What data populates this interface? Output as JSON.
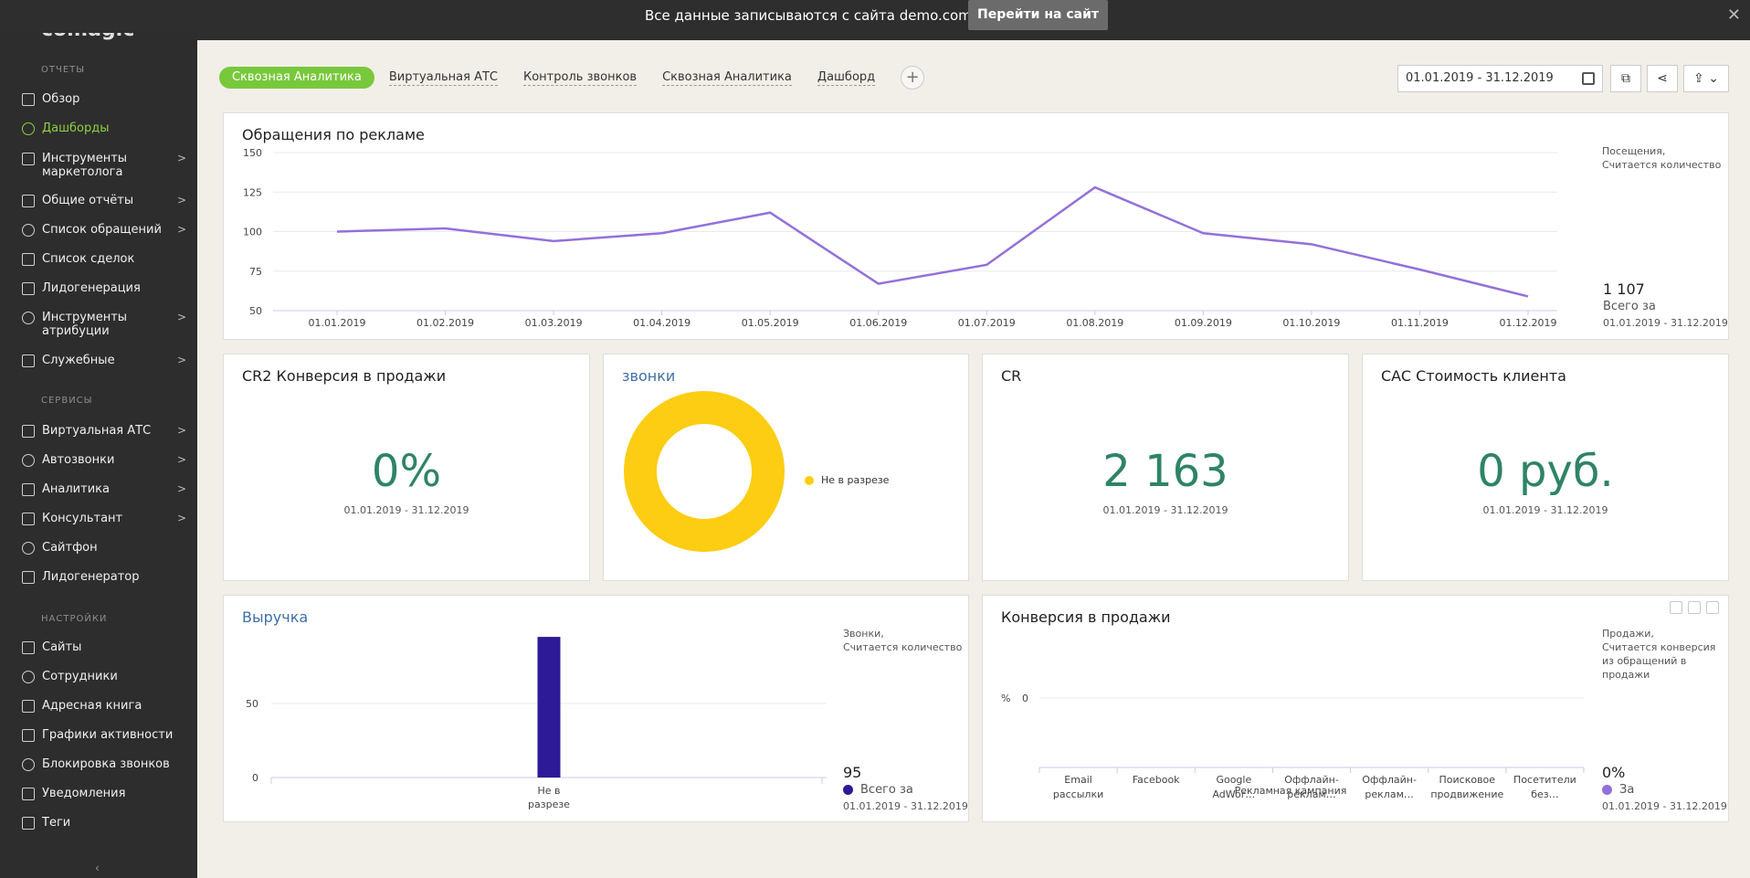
{
  "banner": {
    "text": "Все данные записываются с сайта demo.comagic.ru",
    "button": "Перейти на сайт",
    "close": "✕"
  },
  "sidebar": {
    "logo": "comagic",
    "sections": {
      "reports": "ОТЧЕТЫ",
      "services": "СЕРВИСЫ",
      "settings": "НАСТРОЙКИ"
    },
    "reports_items": [
      {
        "label": "Обзор",
        "arrow": ""
      },
      {
        "label": "Дашборды",
        "arrow": ""
      },
      {
        "label": "Инструменты маркетолога",
        "arrow": ">"
      },
      {
        "label": "Общие отчёты",
        "arrow": ">"
      },
      {
        "label": "Список обращений",
        "arrow": ">"
      },
      {
        "label": "Список сделок",
        "arrow": ""
      },
      {
        "label": "Лидогенерация",
        "arrow": ""
      },
      {
        "label": "Инструменты атрибуции",
        "arrow": ">"
      },
      {
        "label": "Служебные",
        "arrow": ">"
      }
    ],
    "services_items": [
      {
        "label": "Виртуальная АТС",
        "arrow": ">"
      },
      {
        "label": "Автозвонки",
        "arrow": ">"
      },
      {
        "label": "Аналитика",
        "arrow": ">"
      },
      {
        "label": "Консультант",
        "arrow": ">"
      },
      {
        "label": "Сайтфон",
        "arrow": ""
      },
      {
        "label": "Лидогенератор",
        "arrow": ""
      }
    ],
    "settings_items": [
      {
        "label": "Сайты",
        "arrow": ""
      },
      {
        "label": "Сотрудники",
        "arrow": ""
      },
      {
        "label": "Адресная книга",
        "arrow": ""
      },
      {
        "label": "Графики активности",
        "arrow": ""
      },
      {
        "label": "Блокировка звонков",
        "arrow": ""
      },
      {
        "label": "Уведомления",
        "arrow": ""
      },
      {
        "label": "Теги",
        "arrow": ""
      }
    ],
    "collapse": "‹"
  },
  "tabs": [
    "Сквозная Аналитика",
    "Виртуальная АТС",
    "Контроль звонков",
    "Сквозная Аналитика",
    "Дашборд"
  ],
  "tab_add": "+",
  "date_range": "01.01.2019 - 31.12.2019",
  "colors": {
    "accent": "#78c83c",
    "line": "#9370db",
    "big_number": "#2e8466",
    "donut": "#fccd13",
    "bar": "#2d1a96",
    "conv_dot": "#9370db"
  },
  "widgets": {
    "ads": {
      "title": "Обращения по рекламе",
      "legend": [
        "Посещения,",
        "Считается количество"
      ],
      "total": "1 107",
      "total_label": "Всего за",
      "total_date": "01.01.2019 - 31.12.2019"
    },
    "cr2": {
      "title": "CR2 Конверсия в продажи",
      "value": "0%",
      "date": "01.01.2019 - 31.12.2019"
    },
    "calls": {
      "title": "звонки",
      "legend": "Не в разрезе"
    },
    "cr": {
      "title": "CR",
      "value": "2 163",
      "date": "01.01.2019 - 31.12.2019"
    },
    "cac": {
      "title": "CAC Стоимость клиента",
      "value": "0 руб.",
      "date": "01.01.2019 - 31.12.2019"
    },
    "revenue": {
      "title": "Выручка",
      "legend": [
        "Звонки,",
        "Считается количество"
      ],
      "total": "95",
      "total_label": "Всего за",
      "total_date": "01.01.2019 - 31.12.2019"
    },
    "conversion": {
      "title": "Конверсия в продажи",
      "legend": [
        "Продажи,",
        "Считается конверсия",
        "из обращений в",
        "продажи"
      ],
      "total": "0%",
      "total_label": "За",
      "total_date": "01.01.2019 - 31.12.2019",
      "axis_title": "Рекламная кампания",
      "y_symbol": "%"
    }
  },
  "chart_data": [
    {
      "type": "line",
      "title": "Обращения по рекламе",
      "categories": [
        "01.01.2019",
        "01.02.2019",
        "01.03.2019",
        "01.04.2019",
        "01.05.2019",
        "01.06.2019",
        "01.07.2019",
        "01.08.2019",
        "01.09.2019",
        "01.10.2019",
        "01.11.2019",
        "01.12.2019"
      ],
      "series": [
        {
          "name": "Посещения",
          "values": [
            100,
            102,
            94,
            99,
            112,
            67,
            79,
            128,
            99,
            92,
            76,
            59
          ]
        }
      ],
      "yticks": [
        50,
        75,
        100,
        125,
        150
      ],
      "ylim": [
        50,
        150
      ]
    },
    {
      "type": "pie",
      "title": "звонки",
      "categories": [
        "Не в разрезе"
      ],
      "values": [
        100
      ]
    },
    {
      "type": "bar",
      "title": "Выручка",
      "categories": [
        "Не в разрезе"
      ],
      "values": [
        95
      ],
      "yticks": [
        0,
        50
      ],
      "ylim": [
        0,
        95
      ]
    },
    {
      "type": "bar",
      "title": "Конверсия в продажи",
      "xlabel": "Рекламная кампания",
      "categories": [
        [
          "Email",
          "рассылки"
        ],
        [
          "Facebook"
        ],
        [
          "Google",
          "AdWor…"
        ],
        [
          "Оффлайн-",
          "реклам…"
        ],
        [
          "Оффлайн-",
          "реклам…"
        ],
        [
          "Поисковое",
          "продвижение"
        ],
        [
          "Посетители",
          "без…"
        ]
      ],
      "values": [
        0,
        0,
        0,
        0,
        0,
        0,
        0
      ],
      "yticks": [
        0
      ]
    }
  ]
}
